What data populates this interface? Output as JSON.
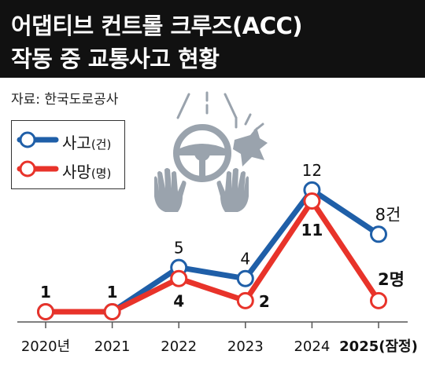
{
  "header": {
    "title_line1": "어댑티브 컨트롤 크루즈(ACC)",
    "title_line2": "작동 중 교통사고 현황"
  },
  "source": "자료: 한국도로공사",
  "legend": [
    {
      "label": "사고",
      "unit": "(건)",
      "color": "#1f5fa8"
    },
    {
      "label": "사망",
      "unit": "(명)",
      "color": "#e8332a"
    }
  ],
  "icons": [
    "steering-wheel-icon",
    "collision-icon",
    "hand-left-icon",
    "hand-right-icon",
    "road-lines-icon"
  ],
  "chart_data": {
    "type": "line",
    "categories": [
      "2020년",
      "2021",
      "2022",
      "2023",
      "2024",
      "2025(잠정)"
    ],
    "series": [
      {
        "name": "사고(건)",
        "color": "#1f5fa8",
        "values": [
          1,
          1,
          5,
          4,
          12,
          8
        ],
        "labels": [
          "1",
          "1",
          "5",
          "4",
          "12",
          "8건"
        ]
      },
      {
        "name": "사망(명)",
        "color": "#e8332a",
        "values": [
          1,
          1,
          4,
          2,
          11,
          2
        ],
        "labels": [
          "",
          "",
          "4",
          "2",
          "11",
          "2명"
        ]
      }
    ],
    "ylim": [
      0,
      13
    ],
    "grid": false,
    "legend_position": "top-left"
  }
}
